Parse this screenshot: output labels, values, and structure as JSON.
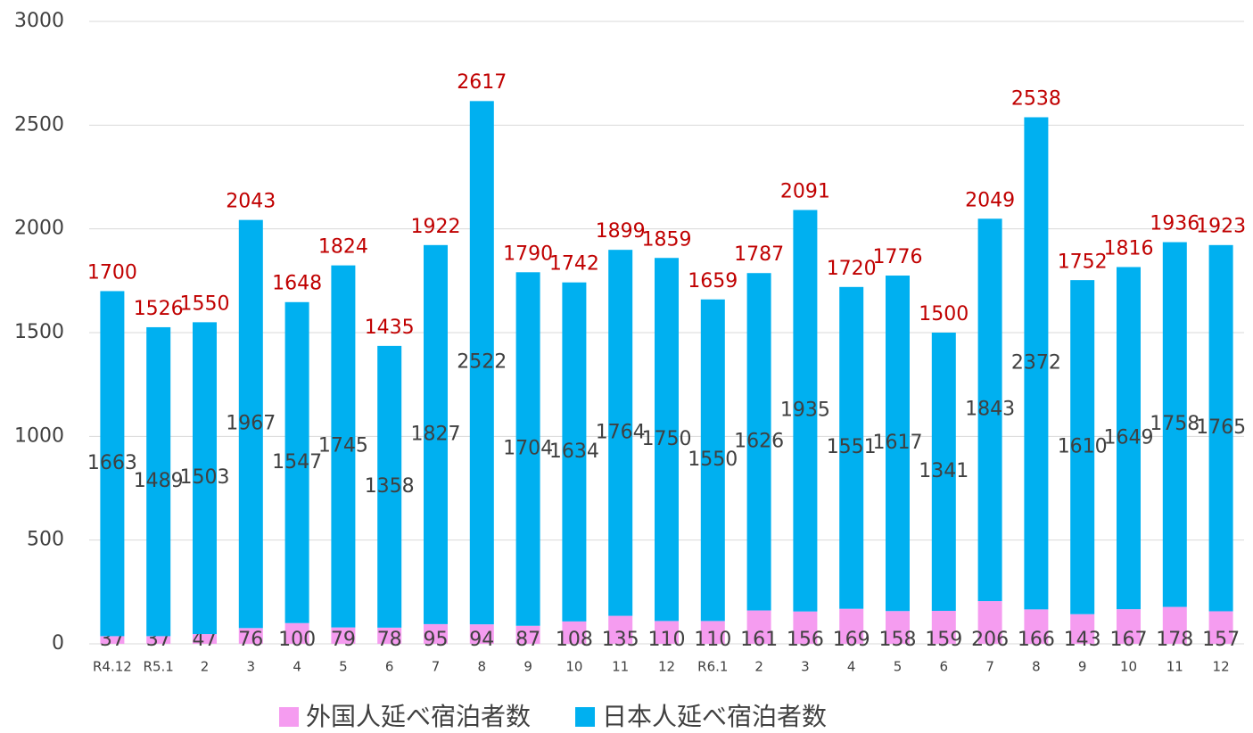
{
  "chart_data": {
    "type": "bar",
    "stacked": true,
    "categories": [
      "R4.12",
      "R5.1",
      "2",
      "3",
      "4",
      "5",
      "6",
      "7",
      "8",
      "9",
      "10",
      "11",
      "12",
      "R6.1",
      "2",
      "3",
      "4",
      "5",
      "6",
      "7",
      "8",
      "9",
      "10",
      "11",
      "12"
    ],
    "series": [
      {
        "name": "外国人延べ宿泊者数",
        "color": "#f59cf0",
        "label_color": "#404040",
        "values": [
          37,
          37,
          47,
          76,
          100,
          79,
          78,
          95,
          94,
          87,
          108,
          135,
          110,
          110,
          161,
          156,
          169,
          158,
          159,
          206,
          166,
          143,
          167,
          178,
          157
        ]
      },
      {
        "name": "日本人延べ宿泊者数",
        "color": "#00b0f0",
        "label_color": "#404040",
        "values": [
          1663,
          1489,
          1503,
          1967,
          1547,
          1745,
          1358,
          1827,
          2522,
          1704,
          1634,
          1764,
          1750,
          1550,
          1626,
          1935,
          1551,
          1617,
          1341,
          1843,
          2372,
          1610,
          1649,
          1758,
          1765
        ]
      }
    ],
    "totals": [
      1700,
      1526,
      1550,
      2043,
      1648,
      1824,
      1435,
      1922,
      2617,
      1790,
      1742,
      1899,
      1859,
      1659,
      1787,
      2091,
      1720,
      1776,
      1500,
      2049,
      2538,
      1752,
      1816,
      1936,
      1923
    ],
    "totals_color": "#c00000",
    "ylim": [
      0,
      3000
    ],
    "yticks": [
      0,
      500,
      1000,
      1500,
      2000,
      2500,
      3000
    ],
    "grid": true,
    "legend": "bottom"
  }
}
